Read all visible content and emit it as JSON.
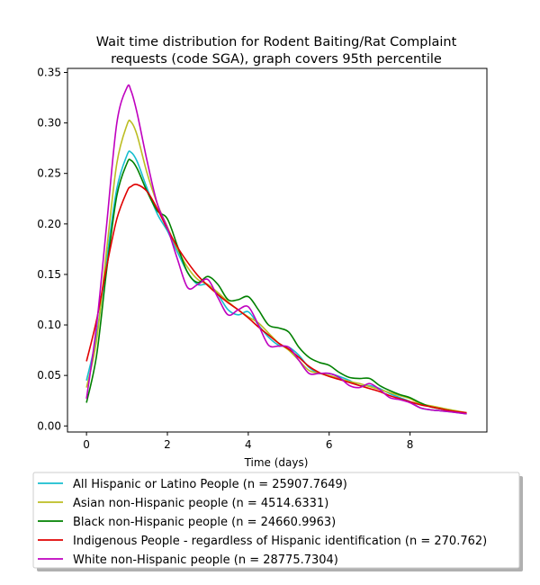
{
  "chart_data": {
    "type": "line",
    "title_lines": [
      "Wait time distribution  for Rodent Baiting/Rat Complaint",
      "requests (code SGA), graph covers 95th percentile"
    ],
    "xlabel": "Time (days)",
    "ylabel": "",
    "xlim": [
      -0.47,
      9.9
    ],
    "ylim": [
      -0.006,
      0.354
    ],
    "xticks": [
      0,
      2,
      4,
      6,
      8
    ],
    "yticks": [
      0.0,
      0.05,
      0.1,
      0.15,
      0.2,
      0.25,
      0.3,
      0.35
    ],
    "ytick_labels": [
      "0.00",
      "0.05",
      "0.10",
      "0.15",
      "0.20",
      "0.25",
      "0.30",
      "0.35"
    ],
    "grid": false,
    "legend_position": "below plot",
    "x": [
      0,
      0.25,
      0.5,
      0.75,
      1.0,
      1.1,
      1.25,
      1.5,
      1.75,
      2.0,
      2.25,
      2.5,
      2.75,
      3.0,
      3.25,
      3.5,
      3.75,
      4.0,
      4.25,
      4.5,
      4.75,
      5.0,
      5.25,
      5.5,
      5.75,
      6.0,
      6.25,
      6.5,
      6.75,
      7.0,
      7.25,
      7.5,
      7.75,
      8.0,
      8.25,
      8.5,
      8.75,
      9.0,
      9.4
    ],
    "series": [
      {
        "name": "All Hispanic or Latino People (n = 25907.7649)",
        "color": "#17becf",
        "values": [
          0.045,
          0.09,
          0.165,
          0.235,
          0.268,
          0.271,
          0.262,
          0.235,
          0.21,
          0.193,
          0.172,
          0.152,
          0.14,
          0.14,
          0.13,
          0.115,
          0.11,
          0.113,
          0.1,
          0.088,
          0.08,
          0.078,
          0.07,
          0.058,
          0.052,
          0.052,
          0.049,
          0.045,
          0.04,
          0.04,
          0.037,
          0.032,
          0.028,
          0.024,
          0.018,
          0.016,
          0.015,
          0.014,
          0.012
        ]
      },
      {
        "name": "Asian non-Hispanic people (n = 4514.6331)",
        "color": "#bcbd22",
        "values": [
          0.038,
          0.085,
          0.175,
          0.26,
          0.298,
          0.301,
          0.288,
          0.25,
          0.22,
          0.197,
          0.175,
          0.157,
          0.145,
          0.14,
          0.132,
          0.123,
          0.115,
          0.108,
          0.102,
          0.092,
          0.082,
          0.075,
          0.065,
          0.055,
          0.052,
          0.05,
          0.047,
          0.044,
          0.042,
          0.039,
          0.036,
          0.033,
          0.03,
          0.027,
          0.022,
          0.02,
          0.018,
          0.016,
          0.013
        ]
      },
      {
        "name": "Black non-Hispanic people (n = 24660.9963)",
        "color": "#008000",
        "values": [
          0.023,
          0.07,
          0.155,
          0.228,
          0.26,
          0.263,
          0.255,
          0.232,
          0.213,
          0.205,
          0.178,
          0.152,
          0.142,
          0.148,
          0.14,
          0.125,
          0.125,
          0.128,
          0.115,
          0.1,
          0.097,
          0.093,
          0.078,
          0.068,
          0.063,
          0.06,
          0.053,
          0.048,
          0.047,
          0.047,
          0.04,
          0.035,
          0.031,
          0.028,
          0.023,
          0.019,
          0.017,
          0.015,
          0.012
        ]
      },
      {
        "name": "Indigenous People - regardless of Hispanic identification (n = 270.762)",
        "color": "#e00000",
        "values": [
          0.064,
          0.105,
          0.158,
          0.205,
          0.232,
          0.237,
          0.239,
          0.232,
          0.215,
          0.195,
          0.177,
          0.162,
          0.149,
          0.139,
          0.13,
          0.122,
          0.115,
          0.107,
          0.098,
          0.09,
          0.082,
          0.076,
          0.068,
          0.059,
          0.053,
          0.049,
          0.046,
          0.043,
          0.04,
          0.037,
          0.034,
          0.03,
          0.027,
          0.024,
          0.021,
          0.019,
          0.017,
          0.015,
          0.013
        ]
      },
      {
        "name": "White non-Hispanic people (n = 28775.7304)",
        "color": "#bf00bf",
        "values": [
          0.027,
          0.1,
          0.2,
          0.3,
          0.335,
          0.332,
          0.31,
          0.262,
          0.22,
          0.196,
          0.165,
          0.137,
          0.14,
          0.145,
          0.127,
          0.11,
          0.115,
          0.118,
          0.1,
          0.08,
          0.079,
          0.078,
          0.065,
          0.052,
          0.052,
          0.052,
          0.048,
          0.04,
          0.038,
          0.042,
          0.036,
          0.028,
          0.026,
          0.023,
          0.018,
          0.016,
          0.015,
          0.014,
          0.012
        ]
      }
    ]
  }
}
